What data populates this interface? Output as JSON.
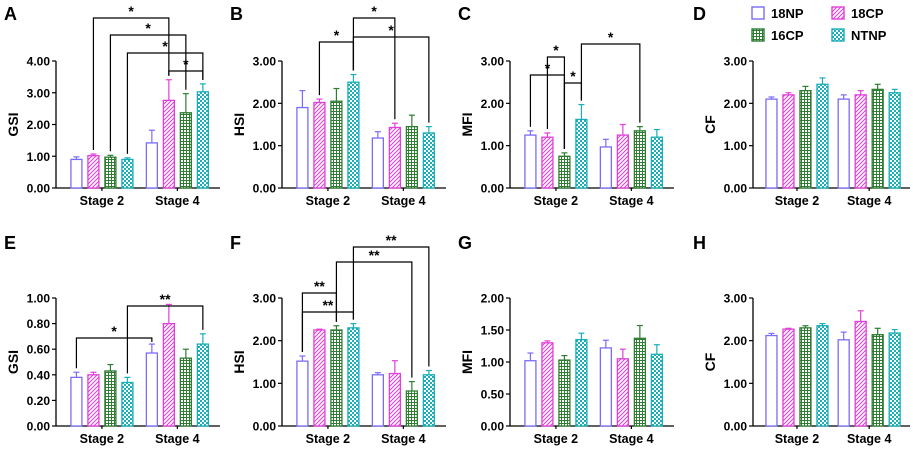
{
  "figure": {
    "stage_labels": [
      "Stage 2",
      "Stage 4"
    ],
    "legend": [
      {
        "name": "18NP",
        "color": "#7b6cf6",
        "pattern": "none"
      },
      {
        "name": "18CP",
        "color": "#e040d8",
        "pattern": "diag"
      },
      {
        "name": "16CP",
        "color": "#2e7d32",
        "pattern": "grid"
      },
      {
        "name": "NTNP",
        "color": "#19aeb8",
        "pattern": "check"
      }
    ]
  },
  "chart_data": [
    {
      "panel": "A",
      "type": "bar",
      "ylabel": "GSI",
      "ylim": [
        0,
        4
      ],
      "ticks": [
        "0.00",
        "1.00",
        "2.00",
        "3.00",
        "4.00"
      ],
      "tick_values": [
        0,
        1,
        2,
        3,
        4
      ],
      "categories": [
        "Stage 2",
        "Stage 4"
      ],
      "series": [
        {
          "name": "18NP",
          "values": [
            0.9,
            1.42
          ],
          "err": [
            0.08,
            0.4
          ]
        },
        {
          "name": "18CP",
          "values": [
            1.02,
            2.76
          ],
          "err": [
            0.05,
            0.65
          ]
        },
        {
          "name": "16CP",
          "values": [
            0.97,
            2.37
          ],
          "err": [
            0.06,
            0.6
          ]
        },
        {
          "name": "NTNP",
          "values": [
            0.9,
            3.03
          ],
          "err": [
            0.05,
            0.25
          ]
        }
      ],
      "significance": [
        {
          "label": "*",
          "from": [
            0,
            1
          ],
          "to": [
            1,
            1
          ]
        },
        {
          "label": "*",
          "from": [
            0,
            2
          ],
          "to": [
            1,
            2
          ]
        },
        {
          "label": "*",
          "from": [
            0,
            3
          ],
          "to": [
            1,
            3
          ]
        },
        {
          "label": "*",
          "from": [
            1,
            1
          ],
          "to": [
            1,
            3
          ]
        }
      ]
    },
    {
      "panel": "B",
      "type": "bar",
      "ylabel": "HSI",
      "ylim": [
        0,
        3
      ],
      "ticks": [
        "0.00",
        "1.00",
        "2.00",
        "3.00"
      ],
      "tick_values": [
        0,
        1,
        2,
        3
      ],
      "categories": [
        "Stage 2",
        "Stage 4"
      ],
      "series": [
        {
          "name": "18NP",
          "values": [
            1.9,
            1.18
          ],
          "err": [
            0.4,
            0.15
          ]
        },
        {
          "name": "18CP",
          "values": [
            2.02,
            1.43
          ],
          "err": [
            0.08,
            0.1
          ]
        },
        {
          "name": "16CP",
          "values": [
            2.05,
            1.45
          ],
          "err": [
            0.3,
            0.27
          ]
        },
        {
          "name": "NTNP",
          "values": [
            2.5,
            1.3
          ],
          "err": [
            0.18,
            0.15
          ]
        }
      ],
      "significance": [
        {
          "label": "*",
          "from": [
            0,
            3
          ],
          "to": [
            1,
            1
          ]
        },
        {
          "label": "*",
          "from": [
            0,
            1
          ],
          "to": [
            0,
            3
          ]
        },
        {
          "label": "*",
          "from": [
            0,
            3
          ],
          "to": [
            1,
            3
          ]
        }
      ]
    },
    {
      "panel": "C",
      "type": "bar",
      "ylabel": "MFI",
      "ylim": [
        0,
        3
      ],
      "ticks": [
        "0.00",
        "1.00",
        "2.00",
        "3.00"
      ],
      "tick_values": [
        0,
        1,
        2,
        3
      ],
      "categories": [
        "Stage 2",
        "Stage 4"
      ],
      "series": [
        {
          "name": "18NP",
          "values": [
            1.25,
            0.97
          ],
          "err": [
            0.1,
            0.18
          ]
        },
        {
          "name": "18CP",
          "values": [
            1.2,
            1.25
          ],
          "err": [
            0.1,
            0.25
          ]
        },
        {
          "name": "16CP",
          "values": [
            0.75,
            1.35
          ],
          "err": [
            0.08,
            0.1
          ]
        },
        {
          "name": "NTNP",
          "values": [
            1.62,
            1.2
          ],
          "err": [
            0.35,
            0.18
          ]
        }
      ],
      "significance": [
        {
          "label": "*",
          "from": [
            0,
            0
          ],
          "to": [
            0,
            2
          ]
        },
        {
          "label": "*",
          "from": [
            0,
            1
          ],
          "to": [
            0,
            2
          ]
        },
        {
          "label": "*",
          "from": [
            0,
            2
          ],
          "to": [
            0,
            3
          ]
        },
        {
          "label": "*",
          "from": [
            0,
            3
          ],
          "to": [
            1,
            2
          ]
        }
      ]
    },
    {
      "panel": "D",
      "type": "bar",
      "ylabel": "CF",
      "ylim": [
        0,
        3
      ],
      "ticks": [
        "0.00",
        "1.00",
        "2.00",
        "3.00"
      ],
      "tick_values": [
        0,
        1,
        2,
        3
      ],
      "categories": [
        "Stage 2",
        "Stage 4"
      ],
      "series": [
        {
          "name": "18NP",
          "values": [
            2.1,
            2.1
          ],
          "err": [
            0.05,
            0.1
          ]
        },
        {
          "name": "18CP",
          "values": [
            2.2,
            2.2
          ],
          "err": [
            0.05,
            0.1
          ]
        },
        {
          "name": "16CP",
          "values": [
            2.3,
            2.33
          ],
          "err": [
            0.1,
            0.12
          ]
        },
        {
          "name": "NTNP",
          "values": [
            2.45,
            2.25
          ],
          "err": [
            0.15,
            0.08
          ]
        }
      ],
      "significance": []
    },
    {
      "panel": "E",
      "type": "bar",
      "ylabel": "GSI",
      "ylim": [
        0,
        1
      ],
      "ticks": [
        "0.00",
        "0.20",
        "0.40",
        "0.60",
        "0.80",
        "1.00"
      ],
      "tick_values": [
        0,
        0.2,
        0.4,
        0.6,
        0.8,
        1
      ],
      "categories": [
        "Stage 2",
        "Stage 4"
      ],
      "series": [
        {
          "name": "18NP",
          "values": [
            0.38,
            0.57
          ],
          "err": [
            0.04,
            0.07
          ]
        },
        {
          "name": "18CP",
          "values": [
            0.4,
            0.8
          ],
          "err": [
            0.02,
            0.15
          ]
        },
        {
          "name": "16CP",
          "values": [
            0.43,
            0.53
          ],
          "err": [
            0.05,
            0.07
          ]
        },
        {
          "name": "NTNP",
          "values": [
            0.34,
            0.64
          ],
          "err": [
            0.04,
            0.08
          ]
        }
      ],
      "significance": [
        {
          "label": "*",
          "from": [
            0,
            0
          ],
          "to": [
            1,
            0
          ]
        },
        {
          "label": "**",
          "from": [
            0,
            3
          ],
          "to": [
            1,
            3
          ]
        }
      ]
    },
    {
      "panel": "F",
      "type": "bar",
      "ylabel": "HSI",
      "ylim": [
        0,
        3
      ],
      "ticks": [
        "0.00",
        "1.00",
        "2.00",
        "3.00"
      ],
      "tick_values": [
        0,
        1,
        2,
        3
      ],
      "categories": [
        "Stage 2",
        "Stage 4"
      ],
      "series": [
        {
          "name": "18NP",
          "values": [
            1.52,
            1.2
          ],
          "err": [
            0.12,
            0.05
          ]
        },
        {
          "name": "18CP",
          "values": [
            2.25,
            1.23
          ],
          "err": [
            0.02,
            0.3
          ]
        },
        {
          "name": "16CP",
          "values": [
            2.25,
            0.82
          ],
          "err": [
            0.1,
            0.22
          ]
        },
        {
          "name": "NTNP",
          "values": [
            2.3,
            1.2
          ],
          "err": [
            0.1,
            0.1
          ]
        }
      ],
      "significance": [
        {
          "label": "**",
          "from": [
            0,
            0
          ],
          "to": [
            0,
            2
          ]
        },
        {
          "label": "**",
          "from": [
            0,
            0
          ],
          "to": [
            0,
            3
          ]
        },
        {
          "label": "**",
          "from": [
            0,
            2
          ],
          "to": [
            1,
            2
          ]
        },
        {
          "label": "**",
          "from": [
            0,
            3
          ],
          "to": [
            1,
            3
          ]
        }
      ]
    },
    {
      "panel": "G",
      "type": "bar",
      "ylabel": "MFI",
      "ylim": [
        0,
        2
      ],
      "ticks": [
        "0.00",
        "0.50",
        "1.00",
        "1.50",
        "2.00"
      ],
      "tick_values": [
        0,
        0.5,
        1,
        1.5,
        2
      ],
      "categories": [
        "Stage 2",
        "Stage 4"
      ],
      "series": [
        {
          "name": "18NP",
          "values": [
            1.02,
            1.22
          ],
          "err": [
            0.12,
            0.12
          ]
        },
        {
          "name": "18CP",
          "values": [
            1.3,
            1.05
          ],
          "err": [
            0.03,
            0.15
          ]
        },
        {
          "name": "16CP",
          "values": [
            1.03,
            1.37
          ],
          "err": [
            0.07,
            0.2
          ]
        },
        {
          "name": "NTNP",
          "values": [
            1.35,
            1.12
          ],
          "err": [
            0.1,
            0.15
          ]
        }
      ],
      "significance": []
    },
    {
      "panel": "H",
      "type": "bar",
      "ylabel": "CF",
      "ylim": [
        0,
        3
      ],
      "ticks": [
        "0.00",
        "1.00",
        "2.00",
        "3.00"
      ],
      "tick_values": [
        0,
        1,
        2,
        3
      ],
      "categories": [
        "Stage 2",
        "Stage 4"
      ],
      "series": [
        {
          "name": "18NP",
          "values": [
            2.12,
            2.02
          ],
          "err": [
            0.05,
            0.18
          ]
        },
        {
          "name": "18CP",
          "values": [
            2.27,
            2.45
          ],
          "err": [
            0.02,
            0.25
          ]
        },
        {
          "name": "16CP",
          "values": [
            2.3,
            2.14
          ],
          "err": [
            0.05,
            0.15
          ]
        },
        {
          "name": "NTNP",
          "values": [
            2.35,
            2.18
          ],
          "err": [
            0.05,
            0.08
          ]
        }
      ],
      "significance": []
    }
  ]
}
